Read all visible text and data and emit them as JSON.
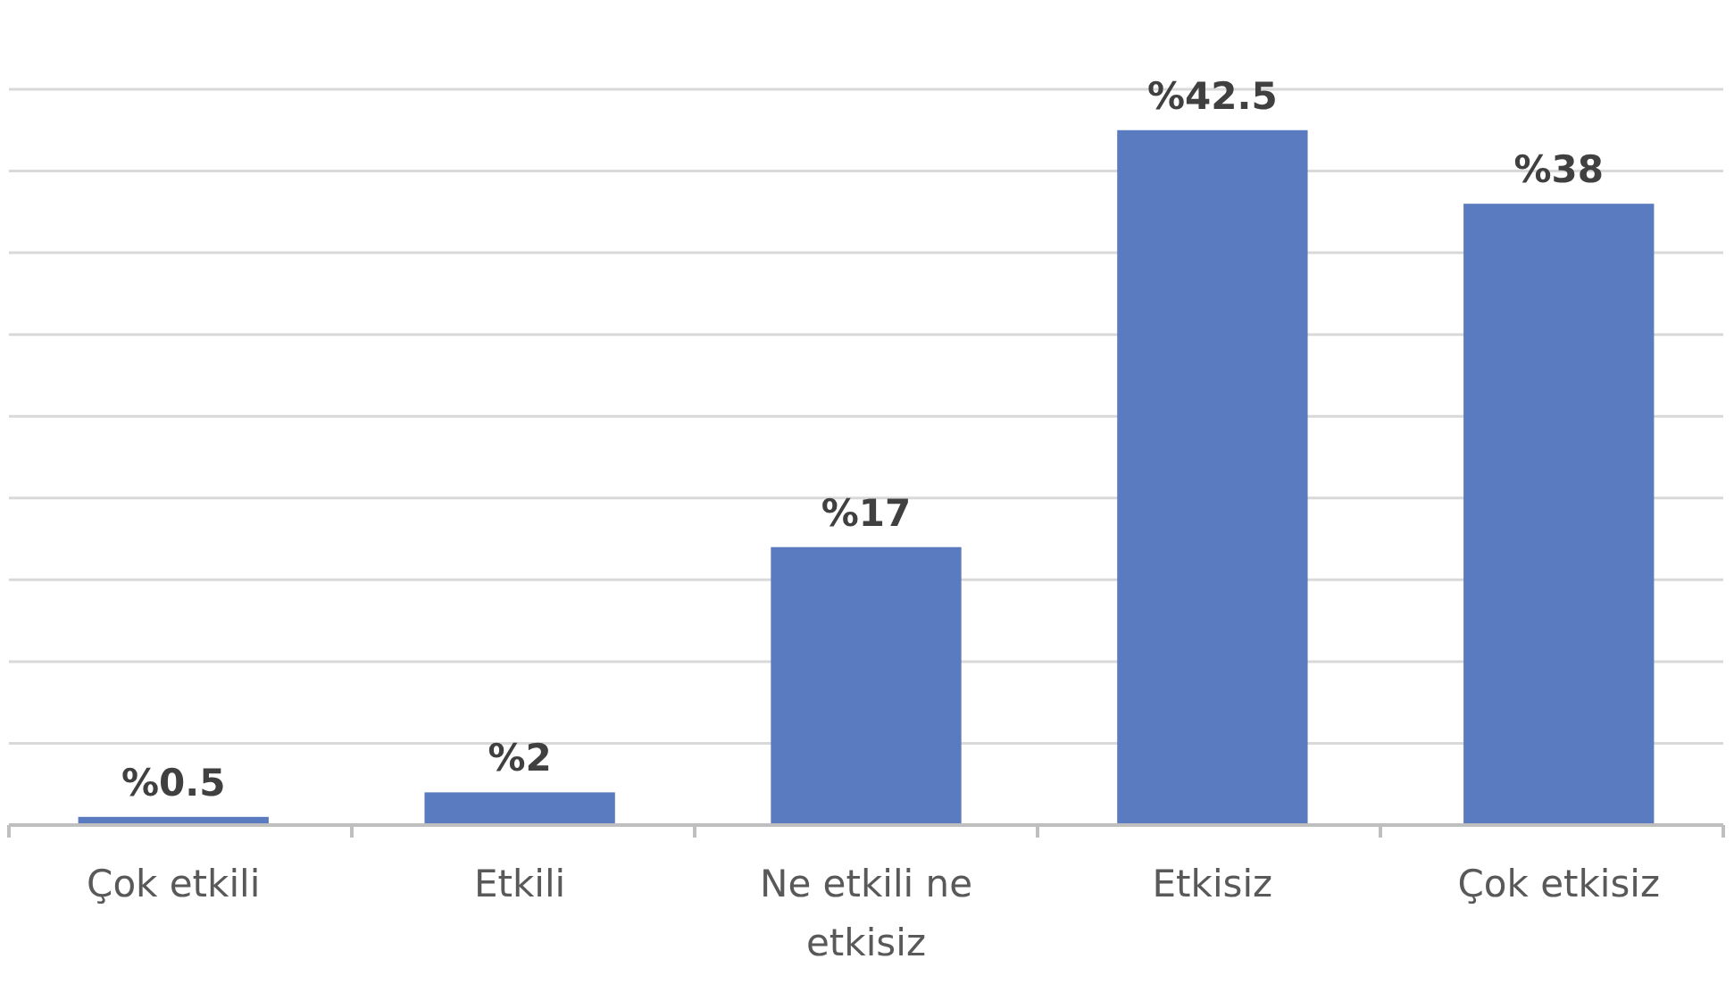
{
  "chart_data": {
    "type": "bar",
    "categories": [
      "Çok etkili",
      "Etkili",
      "Ne etkili ne etkisiz",
      "Etkisiz",
      "Çok etkisiz"
    ],
    "values": [
      0.5,
      2,
      17,
      42.5,
      38
    ],
    "value_labels": [
      "%0.5",
      "%2",
      "%17",
      "%42.5",
      "%38"
    ],
    "color": "#5b7bc0",
    "ylim": [
      0,
      45
    ],
    "yticks": [
      {
        "value": 0,
        "label": null
      },
      {
        "value": 5,
        "label": null
      },
      {
        "value": 10,
        "label": null
      },
      {
        "value": 15,
        "label": null
      },
      {
        "value": 20,
        "label": null
      },
      {
        "value": 25,
        "label": null
      },
      {
        "value": 30,
        "label": null
      },
      {
        "value": 35,
        "label": null
      },
      {
        "value": 40,
        "label": null
      },
      {
        "value": 45,
        "label": null
      }
    ],
    "grid": "y",
    "tick_labels": "x"
  }
}
